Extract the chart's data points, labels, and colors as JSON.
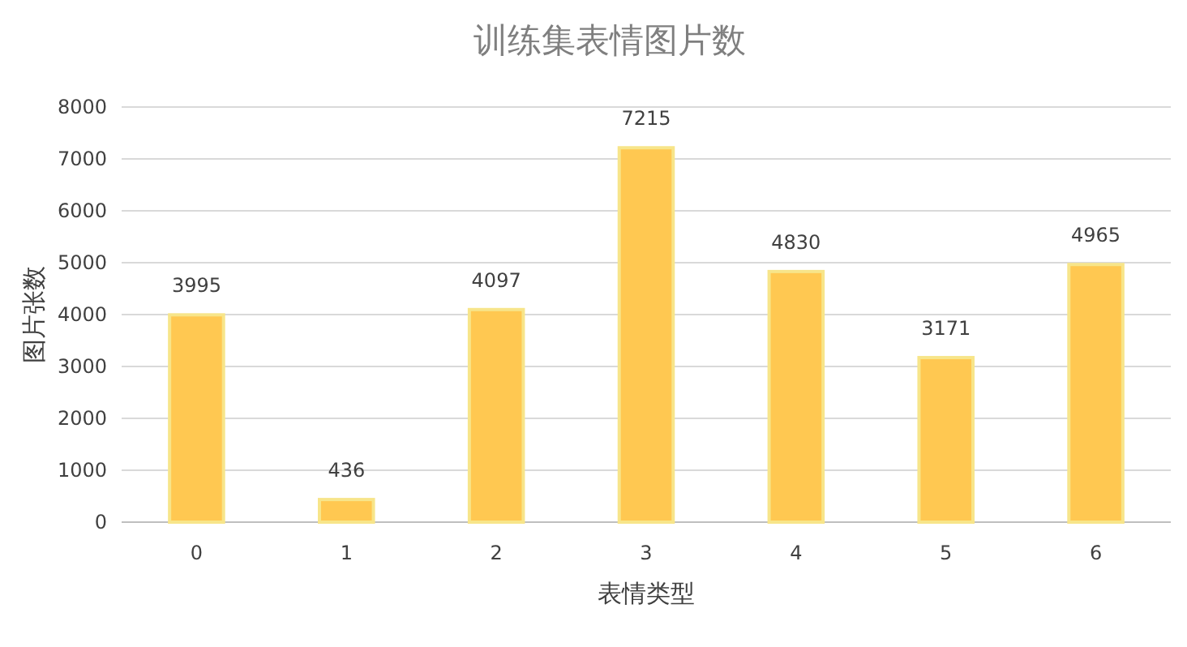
{
  "chart_data": {
    "type": "bar",
    "title": "训练集表情图片数",
    "xlabel": "表情类型",
    "ylabel": "图片张数",
    "categories": [
      "0",
      "1",
      "2",
      "3",
      "4",
      "5",
      "6"
    ],
    "values": [
      3995,
      436,
      4097,
      7215,
      4830,
      3171,
      4965
    ],
    "color": "#ffc851",
    "ylim": [
      0,
      8000
    ],
    "yticks": [
      0,
      1000,
      2000,
      3000,
      4000,
      5000,
      6000,
      7000,
      8000
    ],
    "grid": "y",
    "data_labels": true
  }
}
